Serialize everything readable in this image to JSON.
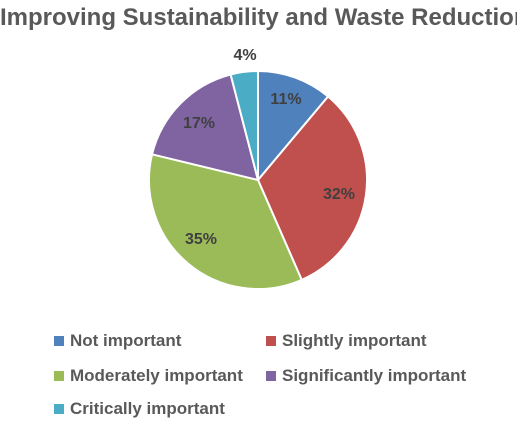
{
  "chart_data": {
    "type": "pie",
    "title": "Improving Sustainability and Waste Reduction",
    "categories": [
      "Not important",
      "Slightly important",
      "Moderately important",
      "Significantly important",
      "Critically important"
    ],
    "values": [
      11,
      32,
      35,
      17,
      4
    ],
    "labels": [
      "11%",
      "32%",
      "35%",
      "17%",
      "4%"
    ],
    "colors": [
      "#4F81BD",
      "#C0504D",
      "#9BBB59",
      "#8064A2",
      "#4BACC6"
    ],
    "legend_position": "bottom"
  }
}
